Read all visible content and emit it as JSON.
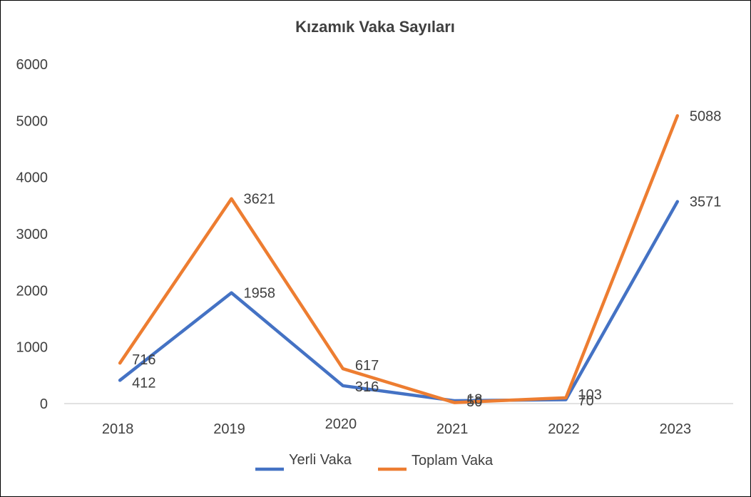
{
  "chart_data": {
    "type": "line",
    "title": "Kızamık Vaka Sayıları",
    "categories": [
      "2018",
      "2019",
      "2020",
      "2021",
      "2022",
      "2023"
    ],
    "ylim": [
      0,
      6000
    ],
    "yticks": [
      "0",
      "1000",
      "2000",
      "3000",
      "4000",
      "5000",
      "6000"
    ],
    "grid": false,
    "legend_position": "bottom",
    "series": [
      {
        "name": "Yerli Vaka",
        "color": "#4472C4",
        "values": [
          412,
          1958,
          316,
          50,
          70,
          3571
        ],
        "labels": [
          "412",
          "1958",
          "316",
          "50",
          "70",
          "3571"
        ]
      },
      {
        "name": "Toplam Vaka",
        "color": "#ED7D31",
        "values": [
          716,
          3621,
          617,
          18,
          103,
          5088
        ],
        "labels": [
          "716",
          "3621",
          "617",
          "18",
          "103",
          "5088"
        ]
      }
    ]
  }
}
